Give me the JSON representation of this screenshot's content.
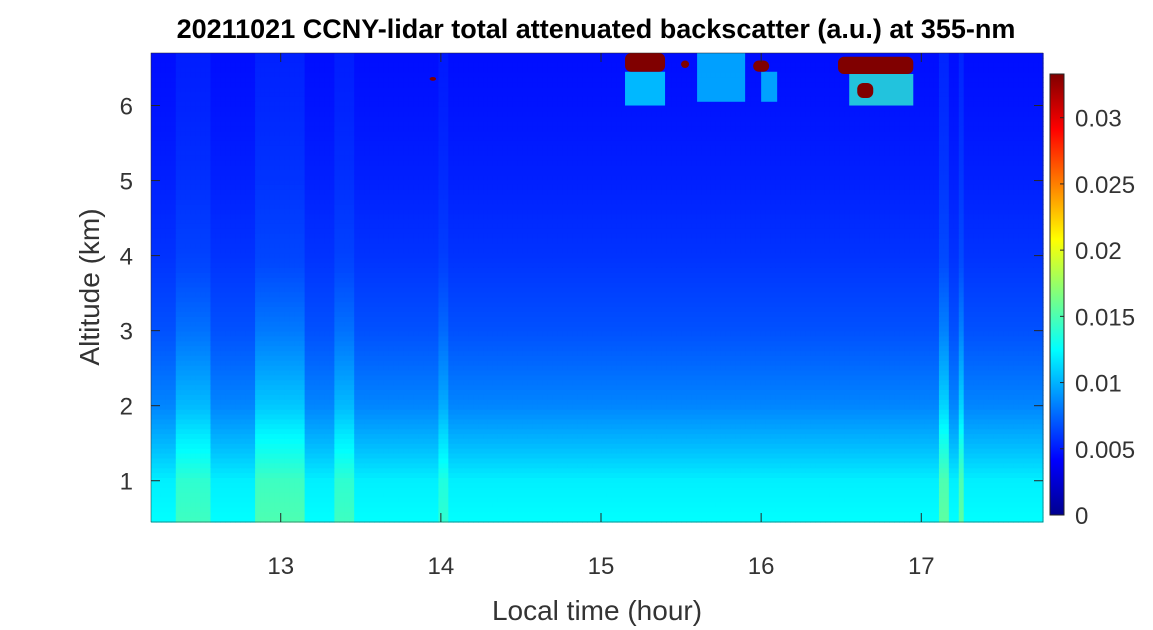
{
  "chart_data": {
    "type": "heatmap",
    "title": "20211021 CCNY-lidar total attenuated backscatter (a.u.) at 355-nm",
    "xlabel": "Local time (hour)",
    "ylabel": "Altitude (km)",
    "xlim": [
      12.19,
      17.76
    ],
    "ylim": [
      0.45,
      6.7
    ],
    "xticks": [
      13,
      14,
      15,
      16,
      17
    ],
    "yticks": [
      1,
      2,
      3,
      4,
      5,
      6
    ],
    "colorbar": {
      "clim": [
        0,
        0.0333
      ],
      "ticks": [
        0,
        0.005,
        0.01,
        0.015,
        0.02,
        0.025,
        0.03
      ],
      "tick_labels": [
        "0",
        "0.005",
        "0.01",
        "0.015",
        "0.02",
        "0.025",
        "0.03"
      ],
      "colormap": "jet"
    },
    "background_profile": [
      {
        "altitude": 0.45,
        "value": 0.0125
      },
      {
        "altitude": 1.0,
        "value": 0.012
      },
      {
        "altitude": 1.4,
        "value": 0.0105
      },
      {
        "altitude": 2.0,
        "value": 0.0085
      },
      {
        "altitude": 3.0,
        "value": 0.0068
      },
      {
        "altitude": 4.0,
        "value": 0.0058
      },
      {
        "altitude": 5.0,
        "value": 0.0052
      },
      {
        "altitude": 6.0,
        "value": 0.0048
      },
      {
        "altitude": 6.7,
        "value": 0.0046
      }
    ],
    "enhanced_columns": [
      {
        "x_start": 12.35,
        "x_end": 12.55,
        "add": 0.002
      },
      {
        "x_start": 12.85,
        "x_end": 13.15,
        "add": 0.0025
      },
      {
        "x_start": 13.35,
        "x_end": 13.45,
        "add": 0.002
      },
      {
        "x_start": 14.0,
        "x_end": 14.05,
        "add": 0.0015
      },
      {
        "x_start": 17.12,
        "x_end": 17.18,
        "add": 0.003
      },
      {
        "x_start": 17.22,
        "x_end": 17.27,
        "add": 0.003
      }
    ],
    "cloud_regions": [
      {
        "x_start": 15.15,
        "x_end": 15.4,
        "y_start": 6.45,
        "y_end": 6.7,
        "value": 0.034
      },
      {
        "x_start": 15.5,
        "x_end": 15.55,
        "y_start": 6.5,
        "y_end": 6.6,
        "value": 0.034
      },
      {
        "x_start": 15.95,
        "x_end": 16.05,
        "y_start": 6.45,
        "y_end": 6.6,
        "value": 0.034
      },
      {
        "x_start": 16.48,
        "x_end": 16.95,
        "y_start": 6.42,
        "y_end": 6.65,
        "value": 0.034
      },
      {
        "x_start": 16.6,
        "x_end": 16.7,
        "y_start": 6.1,
        "y_end": 6.3,
        "value": 0.034
      },
      {
        "x_start": 13.93,
        "x_end": 13.97,
        "y_start": 6.33,
        "y_end": 6.38,
        "value": 0.034
      }
    ],
    "cloud_halos": [
      {
        "x_start": 15.15,
        "x_end": 15.4,
        "y_start": 6.0,
        "y_end": 6.45,
        "value": 0.012
      },
      {
        "x_start": 15.6,
        "x_end": 15.9,
        "y_start": 6.05,
        "y_end": 6.7,
        "value": 0.011
      },
      {
        "x_start": 16.0,
        "x_end": 16.1,
        "y_start": 6.05,
        "y_end": 6.45,
        "value": 0.011
      },
      {
        "x_start": 16.55,
        "x_end": 16.95,
        "y_start": 6.0,
        "y_end": 6.42,
        "value": 0.014
      }
    ]
  }
}
